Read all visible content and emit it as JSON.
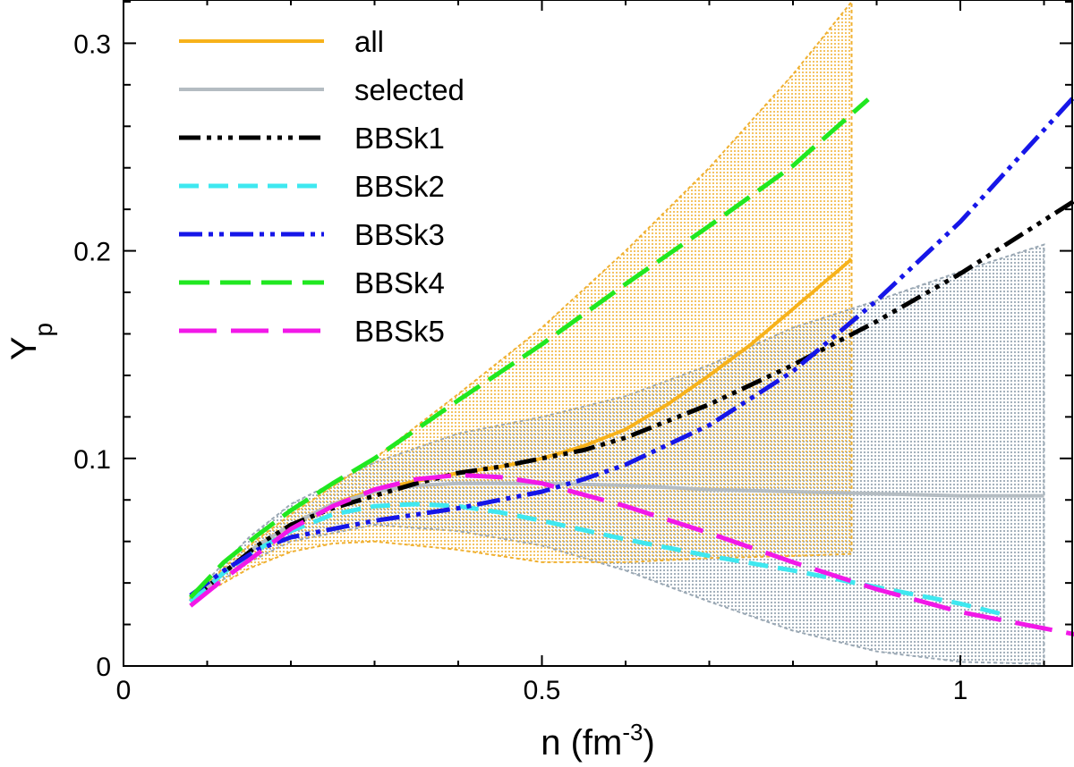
{
  "chart_data": {
    "type": "line",
    "xlabel": "n (fm",
    "xlabel_sup": "-3",
    "xlabel_tail": ")",
    "ylabel": "Y",
    "ylabel_sub": "p",
    "xlim": [
      0,
      1.14
    ],
    "ylim": [
      0,
      0.32
    ],
    "x_ticks": [
      {
        "value": 0,
        "label": "0"
      },
      {
        "value": 0.5,
        "label": "0.5"
      },
      {
        "value": 1,
        "label": "1"
      }
    ],
    "y_ticks": [
      {
        "value": 0,
        "label": "0"
      },
      {
        "value": 0.1,
        "label": "0.1"
      },
      {
        "value": 0.2,
        "label": "0.2"
      },
      {
        "value": 0.3,
        "label": "0.3"
      }
    ],
    "legend_position": "top-left",
    "bands": [
      {
        "name": "selected band",
        "color": "#9aa8b4",
        "upper": {
          "x": [
            0.08,
            0.15,
            0.2,
            0.3,
            0.4,
            0.5,
            0.6,
            0.7,
            0.8,
            0.9,
            1.0,
            1.1
          ],
          "y": [
            0.033,
            0.062,
            0.078,
            0.098,
            0.112,
            0.12,
            0.13,
            0.145,
            0.163,
            0.176,
            0.19,
            0.203
          ]
        },
        "lower": {
          "x": [
            0.08,
            0.15,
            0.2,
            0.3,
            0.4,
            0.5,
            0.6,
            0.7,
            0.8,
            0.9,
            1.0,
            1.1
          ],
          "y": [
            0.031,
            0.05,
            0.06,
            0.068,
            0.065,
            0.058,
            0.046,
            0.031,
            0.017,
            0.007,
            0.002,
            0.001
          ]
        }
      },
      {
        "name": "all band",
        "color": "#f0b030",
        "upper": {
          "x": [
            0.08,
            0.15,
            0.2,
            0.3,
            0.4,
            0.5,
            0.6,
            0.7,
            0.8,
            0.87
          ],
          "y": [
            0.033,
            0.058,
            0.073,
            0.1,
            0.131,
            0.163,
            0.2,
            0.24,
            0.285,
            0.32
          ]
        },
        "lower": {
          "x": [
            0.08,
            0.15,
            0.2,
            0.25,
            0.3,
            0.4,
            0.5,
            0.6,
            0.7,
            0.8,
            0.87
          ],
          "y": [
            0.031,
            0.047,
            0.055,
            0.059,
            0.06,
            0.056,
            0.05,
            0.05,
            0.052,
            0.053,
            0.054
          ]
        }
      }
    ],
    "series": [
      {
        "name": "all",
        "color": "#f7b21b",
        "dash": "",
        "width": 4,
        "x": [
          0.08,
          0.12,
          0.16,
          0.2,
          0.25,
          0.3,
          0.35,
          0.4,
          0.45,
          0.5,
          0.55,
          0.6,
          0.65,
          0.7,
          0.75,
          0.8,
          0.87
        ],
        "y": [
          0.031,
          0.045,
          0.058,
          0.068,
          0.078,
          0.085,
          0.089,
          0.093,
          0.096,
          0.1,
          0.106,
          0.114,
          0.126,
          0.14,
          0.155,
          0.172,
          0.196
        ]
      },
      {
        "name": "selected",
        "color": "#b4bcc2",
        "dash": "",
        "width": 4,
        "x": [
          0.08,
          0.12,
          0.16,
          0.2,
          0.25,
          0.3,
          0.35,
          0.4,
          0.5,
          0.6,
          0.7,
          0.8,
          0.9,
          1.0,
          1.1
        ],
        "y": [
          0.031,
          0.045,
          0.058,
          0.068,
          0.078,
          0.084,
          0.087,
          0.088,
          0.088,
          0.087,
          0.085,
          0.084,
          0.083,
          0.082,
          0.082
        ]
      },
      {
        "name": "BBSk1",
        "color": "#000000",
        "dash": "24 7 5 7 5 7 5 7",
        "width": 5,
        "x": [
          0.08,
          0.12,
          0.16,
          0.2,
          0.25,
          0.3,
          0.35,
          0.4,
          0.45,
          0.5,
          0.55,
          0.6,
          0.7,
          0.8,
          0.9,
          1.0,
          1.14
        ],
        "y": [
          0.031,
          0.045,
          0.058,
          0.068,
          0.076,
          0.082,
          0.088,
          0.093,
          0.096,
          0.1,
          0.104,
          0.11,
          0.126,
          0.145,
          0.166,
          0.189,
          0.225
        ]
      },
      {
        "name": "BBSk2",
        "color": "#3ee8f0",
        "dash": "22 11",
        "width": 5,
        "x": [
          0.08,
          0.12,
          0.16,
          0.2,
          0.25,
          0.3,
          0.35,
          0.4,
          0.45,
          0.5,
          0.6,
          0.7,
          0.8,
          0.9,
          1.0,
          1.05
        ],
        "y": [
          0.031,
          0.045,
          0.056,
          0.065,
          0.073,
          0.077,
          0.078,
          0.077,
          0.074,
          0.07,
          0.061,
          0.053,
          0.046,
          0.038,
          0.03,
          0.025
        ]
      },
      {
        "name": "BBSk3",
        "color": "#1616e8",
        "dash": "26 7 5 7 5 7",
        "width": 5,
        "x": [
          0.08,
          0.12,
          0.16,
          0.2,
          0.25,
          0.3,
          0.35,
          0.4,
          0.45,
          0.5,
          0.55,
          0.6,
          0.7,
          0.8,
          0.9,
          1.0,
          1.14
        ],
        "y": [
          0.034,
          0.046,
          0.056,
          0.062,
          0.066,
          0.07,
          0.073,
          0.076,
          0.08,
          0.084,
          0.09,
          0.097,
          0.116,
          0.142,
          0.176,
          0.214,
          0.276
        ]
      },
      {
        "name": "BBSk4",
        "color": "#20e820",
        "dash": "34 12",
        "width": 5,
        "x": [
          0.08,
          0.12,
          0.16,
          0.2,
          0.25,
          0.3,
          0.4,
          0.5,
          0.6,
          0.7,
          0.8,
          0.89
        ],
        "y": [
          0.033,
          0.05,
          0.063,
          0.075,
          0.088,
          0.1,
          0.128,
          0.155,
          0.184,
          0.212,
          0.241,
          0.273
        ]
      },
      {
        "name": "BBSk5",
        "color": "#f218e8",
        "dash": "42 16",
        "width": 5,
        "x": [
          0.08,
          0.12,
          0.16,
          0.2,
          0.25,
          0.3,
          0.35,
          0.4,
          0.45,
          0.5,
          0.6,
          0.7,
          0.8,
          0.9,
          1.0,
          1.14
        ],
        "y": [
          0.029,
          0.042,
          0.054,
          0.066,
          0.077,
          0.085,
          0.09,
          0.092,
          0.091,
          0.088,
          0.077,
          0.064,
          0.05,
          0.037,
          0.026,
          0.015
        ]
      }
    ]
  }
}
